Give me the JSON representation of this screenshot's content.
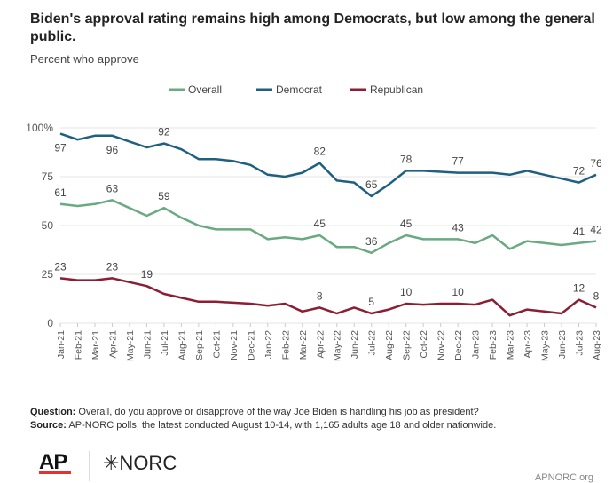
{
  "title": "Biden's approval rating remains high among Democrats, but low among the general public.",
  "subtitle": "Percent who approve",
  "footer": {
    "question_label": "Question:",
    "question": "Overall, do you approve or disapprove of the way Joe Biden is handling his job as president?",
    "source_label": "Source:",
    "source": "AP-NORC polls, the latest conducted August 10-14, with 1,165 adults age 18 and older nationwide.",
    "logo_ap": "AP",
    "logo_norc": "✳NORC",
    "site": "APNORC.org"
  },
  "chart_data": {
    "type": "line",
    "title": "Biden's approval rating remains high among Democrats, but low among the general public.",
    "ylabel": "Percent who approve",
    "ylim": [
      0,
      100
    ],
    "yticks": [
      "0",
      "25",
      "50",
      "75",
      "100%"
    ],
    "ytick_values": [
      0,
      25,
      50,
      75,
      100
    ],
    "grid": true,
    "legend_position": "top",
    "categories": [
      "Jan-21",
      "Feb-21",
      "Mar-21",
      "Apr-21",
      "May-21",
      "Jun-21",
      "Jul-21",
      "Aug-21",
      "Sep-21",
      "Oct-21",
      "Nov-21",
      "Dec-21",
      "Jan-22",
      "Feb-22",
      "Mar-22",
      "Apr-22",
      "May-22",
      "Jun-22",
      "Jul-22",
      "Aug-22",
      "Sep-22",
      "Oct-22",
      "Nov-22",
      "Dec-22",
      "Jan-23",
      "Feb-23",
      "Mar-23",
      "Apr-23",
      "May-23",
      "Jun-23",
      "Jul-23",
      "Aug-23"
    ],
    "series": [
      {
        "name": "Overall",
        "color": "#6aaa82",
        "values": [
          61,
          60,
          61,
          63,
          59,
          55,
          59,
          54,
          50,
          48,
          48,
          48,
          43,
          44,
          43,
          45,
          39,
          39,
          36,
          41,
          45,
          43,
          43,
          43,
          41,
          45,
          38,
          42,
          41,
          40,
          41,
          42
        ]
      },
      {
        "name": "Democrat",
        "color": "#1f5f80",
        "values": [
          97,
          94,
          96,
          96,
          93,
          90,
          92,
          89,
          84,
          84,
          83,
          81,
          76,
          75,
          77,
          82,
          73,
          72,
          65,
          71,
          78,
          78,
          77.5,
          77,
          77,
          77,
          76,
          78,
          76,
          74,
          72,
          76
        ]
      },
      {
        "name": "Republican",
        "color": "#8b1e35",
        "values": [
          23,
          22,
          22,
          23,
          21,
          19,
          15,
          13,
          11,
          11,
          10.5,
          10,
          9,
          10,
          6,
          8,
          5,
          8,
          5,
          7,
          10,
          9.5,
          10,
          10,
          9.5,
          12,
          4,
          7,
          6,
          5,
          12,
          8
        ]
      }
    ],
    "data_labels": [
      {
        "series": 1,
        "index": 0,
        "text": "97",
        "pos": "below"
      },
      {
        "series": 1,
        "index": 3,
        "text": "96",
        "pos": "below"
      },
      {
        "series": 1,
        "index": 6,
        "text": "92",
        "pos": "above"
      },
      {
        "series": 1,
        "index": 15,
        "text": "82",
        "pos": "above"
      },
      {
        "series": 1,
        "index": 18,
        "text": "65",
        "pos": "above"
      },
      {
        "series": 1,
        "index": 20,
        "text": "78",
        "pos": "above"
      },
      {
        "series": 1,
        "index": 23,
        "text": "77",
        "pos": "above"
      },
      {
        "series": 1,
        "index": 30,
        "text": "72",
        "pos": "above"
      },
      {
        "series": 1,
        "index": 31,
        "text": "76",
        "pos": "above"
      },
      {
        "series": 0,
        "index": 0,
        "text": "61",
        "pos": "above"
      },
      {
        "series": 0,
        "index": 3,
        "text": "63",
        "pos": "above"
      },
      {
        "series": 0,
        "index": 6,
        "text": "59",
        "pos": "above"
      },
      {
        "series": 0,
        "index": 15,
        "text": "45",
        "pos": "above"
      },
      {
        "series": 0,
        "index": 18,
        "text": "36",
        "pos": "above"
      },
      {
        "series": 0,
        "index": 20,
        "text": "45",
        "pos": "above"
      },
      {
        "series": 0,
        "index": 23,
        "text": "43",
        "pos": "above"
      },
      {
        "series": 0,
        "index": 30,
        "text": "41",
        "pos": "above"
      },
      {
        "series": 0,
        "index": 31,
        "text": "42",
        "pos": "above"
      },
      {
        "series": 2,
        "index": 0,
        "text": "23",
        "pos": "above"
      },
      {
        "series": 2,
        "index": 3,
        "text": "23",
        "pos": "above"
      },
      {
        "series": 2,
        "index": 5,
        "text": "19",
        "pos": "above"
      },
      {
        "series": 2,
        "index": 15,
        "text": "8",
        "pos": "above"
      },
      {
        "series": 2,
        "index": 18,
        "text": "5",
        "pos": "above"
      },
      {
        "series": 2,
        "index": 20,
        "text": "10",
        "pos": "above"
      },
      {
        "series": 2,
        "index": 23,
        "text": "10",
        "pos": "above"
      },
      {
        "series": 2,
        "index": 30,
        "text": "12",
        "pos": "above"
      },
      {
        "series": 2,
        "index": 31,
        "text": "8",
        "pos": "above"
      }
    ]
  }
}
